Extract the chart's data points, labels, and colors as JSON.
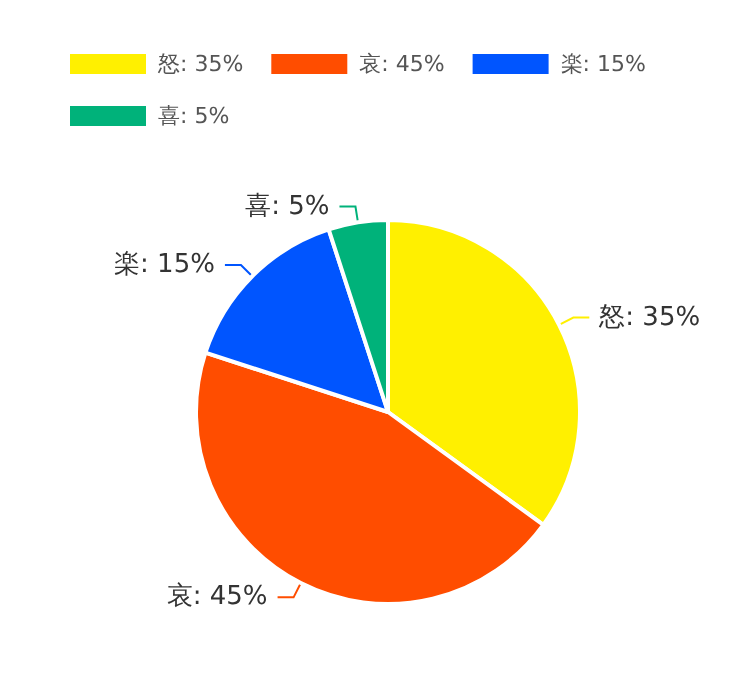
{
  "chart_data": {
    "type": "pie",
    "categories": [
      "怒: 35%",
      "哀: 45%",
      "楽: 15%",
      "喜: 5%"
    ],
    "values": [
      35,
      45,
      15,
      5
    ],
    "colors": [
      "#fff000",
      "#ff4d00",
      "#0055ff",
      "#00b27a"
    ],
    "legend": "top left"
  }
}
